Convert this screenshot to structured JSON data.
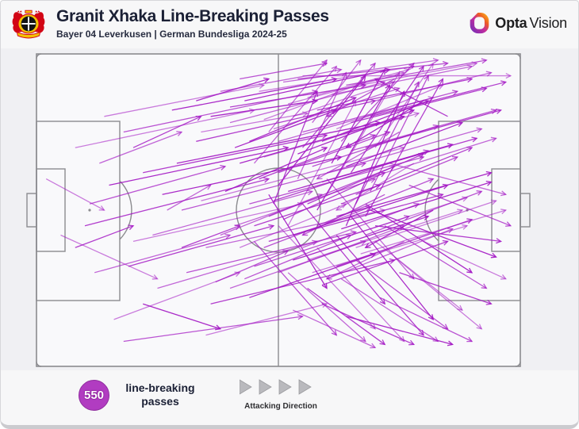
{
  "header": {
    "title": "Granit Xhaka Line-Breaking Passes",
    "subtitle": "Bayer 04 Leverkusen | German Bundesliga 2024-25",
    "club_badge": "bayer-04-leverkusen-crest",
    "brand": {
      "name_bold": "Opta",
      "name_light": "Vision"
    }
  },
  "footer": {
    "stat_value": "550",
    "stat_label_line1": "line-breaking",
    "stat_label_line2": "passes",
    "direction_label": "Attacking Direction",
    "direction_arrow_count": 4
  },
  "colors": {
    "pass": "#a316c4",
    "badge": "#b13cc1",
    "title": "#1b2035",
    "pitch_line": "#8b8b8f",
    "triangle": "#b9b9bd",
    "triangle_edge": "#9b9b9f"
  },
  "chart_data": {
    "type": "scatter",
    "subtype": "pass-map-arrows",
    "title": "Granit Xhaka Line-Breaking Passes",
    "subtitle": "Bayer 04 Leverkusen | German Bundesliga 2024-25",
    "total_passes": 550,
    "attacking_direction": "left-to-right",
    "units": "percent of pitch: x 0 = own goal line, x 100 = opponent goal line; y 0 = top touchline, y 100 = bottom touchline",
    "pass_format": [
      "x_start",
      "y_start",
      "x_end",
      "y_end"
    ],
    "passes": [
      [
        8,
        30,
        45,
        18
      ],
      [
        10,
        55,
        48,
        40
      ],
      [
        12,
        70,
        40,
        58
      ],
      [
        15,
        42,
        52,
        30
      ],
      [
        18,
        25,
        58,
        12
      ],
      [
        20,
        60,
        55,
        48
      ],
      [
        22,
        38,
        60,
        26
      ],
      [
        25,
        75,
        58,
        60
      ],
      [
        28,
        18,
        62,
        8
      ],
      [
        30,
        50,
        68,
        35
      ],
      [
        16,
        85,
        42,
        70
      ],
      [
        33,
        28,
        70,
        15
      ],
      [
        35,
        62,
        72,
        50
      ],
      [
        26,
        45,
        63,
        33
      ],
      [
        31,
        70,
        66,
        57
      ],
      [
        14,
        20,
        47,
        10
      ],
      [
        36,
        80,
        74,
        66
      ],
      [
        24,
        58,
        57,
        44
      ],
      [
        29,
        35,
        71,
        22
      ],
      [
        11,
        48,
        39,
        36
      ],
      [
        34,
        47,
        76,
        30
      ],
      [
        19,
        68,
        49,
        55
      ],
      [
        38,
        12,
        63,
        5
      ],
      [
        36,
        20,
        58,
        15
      ],
      [
        42,
        8,
        60,
        3
      ],
      [
        34,
        25,
        56,
        19
      ],
      [
        40,
        17,
        68,
        10
      ],
      [
        40,
        22,
        72,
        9
      ],
      [
        42,
        35,
        76,
        20
      ],
      [
        44,
        48,
        80,
        33
      ],
      [
        46,
        12,
        78,
        4
      ],
      [
        48,
        60,
        84,
        45
      ],
      [
        50,
        28,
        82,
        14
      ],
      [
        52,
        44,
        86,
        29
      ],
      [
        54,
        8,
        85,
        3
      ],
      [
        56,
        66,
        88,
        50
      ],
      [
        58,
        18,
        90,
        8
      ],
      [
        60,
        38,
        92,
        24
      ],
      [
        62,
        52,
        94,
        38
      ],
      [
        64,
        10,
        93,
        2
      ],
      [
        66,
        62,
        95,
        47
      ],
      [
        68,
        30,
        96,
        18
      ],
      [
        41,
        55,
        70,
        40
      ],
      [
        43,
        15,
        73,
        5
      ],
      [
        45,
        68,
        77,
        52
      ],
      [
        47,
        33,
        79,
        19
      ],
      [
        49,
        47,
        81,
        31
      ],
      [
        51,
        9,
        83,
        2
      ],
      [
        53,
        58,
        85,
        42
      ],
      [
        55,
        25,
        87,
        12
      ],
      [
        57,
        70,
        89,
        55
      ],
      [
        59,
        41,
        91,
        27
      ],
      [
        61,
        13,
        90,
        4
      ],
      [
        63,
        56,
        94,
        41
      ],
      [
        65,
        31,
        95,
        18
      ],
      [
        67,
        64,
        97,
        50
      ],
      [
        69,
        20,
        97,
        9
      ],
      [
        40,
        75,
        68,
        60
      ],
      [
        44,
        28,
        66,
        14
      ],
      [
        48,
        52,
        74,
        36
      ],
      [
        52,
        16,
        76,
        6
      ],
      [
        56,
        48,
        80,
        32
      ],
      [
        60,
        72,
        86,
        56
      ],
      [
        64,
        36,
        88,
        22
      ],
      [
        68,
        58,
        92,
        44
      ],
      [
        42,
        62,
        64,
        48
      ],
      [
        46,
        40,
        70,
        26
      ],
      [
        50,
        70,
        76,
        55
      ],
      [
        54,
        32,
        78,
        18
      ],
      [
        58,
        55,
        82,
        40
      ],
      [
        62,
        24,
        84,
        10
      ],
      [
        66,
        45,
        90,
        30
      ],
      [
        70,
        15,
        94,
        6
      ],
      [
        39,
        44,
        60,
        30
      ],
      [
        43,
        72,
        65,
        58
      ],
      [
        47,
        21,
        68,
        9
      ],
      [
        51,
        53,
        72,
        38
      ],
      [
        55,
        62,
        79,
        48
      ],
      [
        59,
        28,
        81,
        15
      ],
      [
        63,
        48,
        87,
        33
      ],
      [
        67,
        10,
        91,
        3
      ],
      [
        45,
        55,
        71,
        42
      ],
      [
        49,
        24,
        75,
        11
      ],
      [
        53,
        66,
        81,
        52
      ],
      [
        57,
        36,
        83,
        23
      ],
      [
        61,
        60,
        89,
        46
      ],
      [
        65,
        22,
        93,
        11
      ],
      [
        38,
        58,
        59,
        45
      ],
      [
        44,
        78,
        70,
        64
      ],
      [
        50,
        38,
        73,
        25
      ],
      [
        56,
        14,
        77,
        5
      ],
      [
        62,
        68,
        90,
        53
      ],
      [
        68,
        40,
        95,
        27
      ],
      [
        41,
        30,
        62,
        18
      ],
      [
        47,
        62,
        69,
        49
      ],
      [
        53,
        20,
        74,
        9
      ],
      [
        59,
        74,
        85,
        60
      ],
      [
        45,
        35,
        62,
        4
      ],
      [
        50,
        42,
        68,
        7
      ],
      [
        55,
        30,
        70,
        3
      ],
      [
        60,
        45,
        75,
        6
      ],
      [
        65,
        38,
        80,
        4
      ],
      [
        48,
        25,
        60,
        2
      ],
      [
        58,
        50,
        73,
        10
      ],
      [
        63,
        28,
        78,
        3
      ],
      [
        52,
        55,
        66,
        15
      ],
      [
        68,
        52,
        84,
        8
      ],
      [
        57,
        22,
        67,
        2
      ],
      [
        61,
        35,
        72,
        5
      ],
      [
        66,
        48,
        79,
        9
      ],
      [
        70,
        30,
        82,
        3
      ],
      [
        49,
        48,
        58,
        12
      ],
      [
        54,
        40,
        64,
        6
      ],
      [
        64,
        55,
        76,
        12
      ],
      [
        69,
        44,
        81,
        7
      ],
      [
        50,
        55,
        70,
        88
      ],
      [
        55,
        48,
        72,
        80
      ],
      [
        60,
        40,
        78,
        72
      ],
      [
        65,
        52,
        82,
        85
      ],
      [
        45,
        60,
        62,
        90
      ],
      [
        58,
        62,
        76,
        92
      ],
      [
        62,
        58,
        80,
        90
      ],
      [
        52,
        70,
        68,
        92
      ],
      [
        48,
        45,
        60,
        75
      ],
      [
        66,
        66,
        85,
        88
      ],
      [
        70,
        60,
        88,
        82
      ],
      [
        56,
        75,
        72,
        93
      ],
      [
        63,
        72,
        83,
        92
      ],
      [
        68,
        48,
        90,
        70
      ],
      [
        72,
        55,
        93,
        75
      ],
      [
        74,
        65,
        92,
        88
      ],
      [
        59,
        80,
        78,
        93
      ],
      [
        53,
        82,
        70,
        94
      ],
      [
        64,
        84,
        86,
        93
      ],
      [
        71,
        78,
        90,
        92
      ],
      [
        5,
        58,
        25,
        72
      ],
      [
        30,
        62,
        42,
        55
      ],
      [
        13,
        35,
        30,
        25
      ],
      [
        22,
        80,
        38,
        88
      ],
      [
        18,
        92,
        55,
        84
      ],
      [
        35,
        90,
        60,
        80
      ],
      [
        8,
        62,
        20,
        55
      ],
      [
        27,
        50,
        36,
        42
      ],
      [
        33,
        15,
        48,
        8
      ],
      [
        37,
        73,
        52,
        63
      ],
      [
        2,
        40,
        14,
        50
      ],
      [
        20,
        30,
        34,
        20
      ],
      [
        75,
        25,
        58,
        40
      ],
      [
        80,
        15,
        64,
        30
      ],
      [
        72,
        45,
        55,
        58
      ],
      [
        78,
        35,
        62,
        50
      ],
      [
        85,
        20,
        70,
        8
      ],
      [
        76,
        60,
        60,
        72
      ],
      [
        82,
        50,
        68,
        62
      ],
      [
        74,
        8,
        60,
        20
      ],
      [
        55,
        7,
        98,
        7
      ],
      [
        70,
        55,
        96,
        60
      ],
      [
        73,
        35,
        97,
        45
      ],
      [
        69,
        50,
        95,
        65
      ],
      [
        77,
        42,
        98,
        55
      ],
      [
        80,
        60,
        97,
        72
      ],
      [
        75,
        70,
        94,
        80
      ]
    ]
  }
}
